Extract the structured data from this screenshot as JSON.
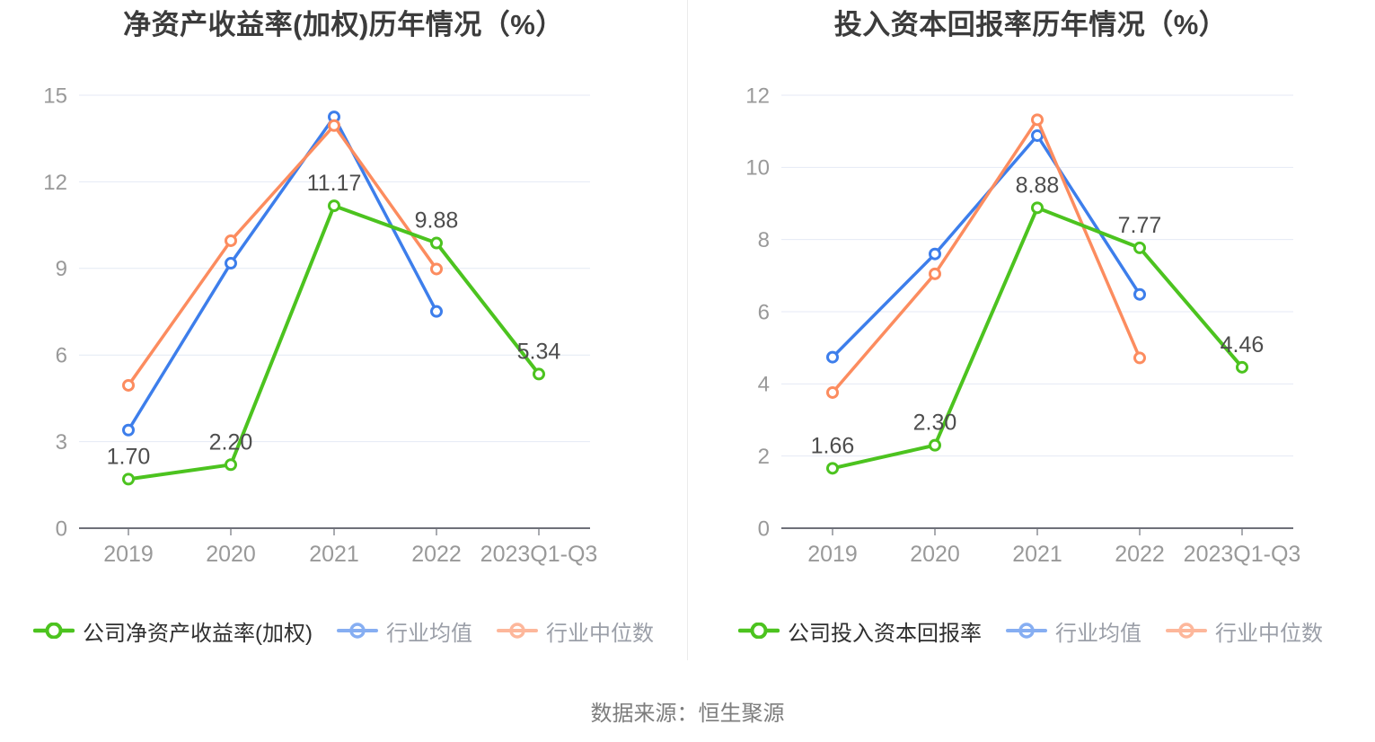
{
  "source": {
    "text": "数据来源：恒生聚源"
  },
  "colors": {
    "company_line": "#4CC31F",
    "industry_mean_line": "#3D7EEB",
    "industry_median_line": "#FC8C5F",
    "grid_line": "#E4EAF4",
    "axis_line": "#6E7079",
    "tick_label": "#999999",
    "data_label": "#4D4D4D",
    "title_text": "#3C3C3C",
    "legend_company_text": "#2F2F2F",
    "legend_industry_text": "#9B9FA8",
    "source_text": "#7D7D7D",
    "background": "#FFFFFF"
  },
  "chart_data": [
    {
      "type": "line",
      "title": "净资产收益率(加权)历年情况（%）",
      "categories": [
        "2019",
        "2020",
        "2021",
        "2022",
        "2023Q1-Q3"
      ],
      "y_ticks": [
        0,
        3,
        6,
        9,
        12,
        15
      ],
      "ylim": [
        0,
        15
      ],
      "grid": true,
      "legend_position": "bottom",
      "series": [
        {
          "name": "公司净资产收益率(加权)",
          "role": "company",
          "values": [
            1.7,
            2.2,
            11.17,
            9.88,
            5.34
          ],
          "point_labels": [
            "1.70",
            "2.20",
            "11.17",
            "9.88",
            "5.34"
          ]
        },
        {
          "name": "行业均值",
          "role": "industry_mean",
          "values": [
            3.4,
            9.18,
            14.25,
            7.51,
            null
          ]
        },
        {
          "name": "行业中位数",
          "role": "industry_median",
          "values": [
            4.95,
            9.96,
            13.95,
            8.98,
            null
          ]
        }
      ]
    },
    {
      "type": "line",
      "title": "投入资本回报率历年情况（%）",
      "categories": [
        "2019",
        "2020",
        "2021",
        "2022",
        "2023Q1-Q3"
      ],
      "y_ticks": [
        0,
        2,
        4,
        6,
        8,
        10,
        12
      ],
      "ylim": [
        0,
        12
      ],
      "grid": true,
      "legend_position": "bottom",
      "series": [
        {
          "name": "公司投入资本回报率",
          "role": "company",
          "values": [
            1.66,
            2.3,
            8.88,
            7.77,
            4.46
          ],
          "point_labels": [
            "1.66",
            "2.30",
            "8.88",
            "7.77",
            "4.46"
          ]
        },
        {
          "name": "行业均值",
          "role": "industry_mean",
          "values": [
            4.74,
            7.6,
            10.88,
            6.48,
            null
          ]
        },
        {
          "name": "行业中位数",
          "role": "industry_median",
          "values": [
            3.76,
            7.05,
            11.32,
            4.72,
            null
          ]
        }
      ]
    }
  ]
}
